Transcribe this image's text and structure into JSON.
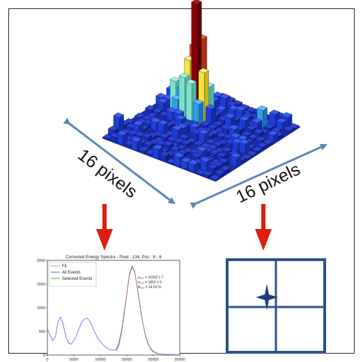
{
  "labels": {
    "left_dimension": "16 pixels",
    "right_dimension": "16 pixels"
  },
  "colors": {
    "frame": "#222222",
    "dimension_arrow": "#5b86b8",
    "down_arrow": "#dd1d10",
    "grid_box": "#2b4f8c",
    "sparkle": "#1d3f7a"
  },
  "histogram": {
    "peak_bars": "3D bar histogram with a tall red/orange/yellow peak near the centre of a blue pixel grid"
  },
  "chart_data": {
    "type": "line",
    "title": "Corrected Energy Spectra - Pixel : 134, Pos : 8 - 6",
    "xlabel": "",
    "ylabel": "",
    "xlim": [
      0,
      25000
    ],
    "ylim": [
      0,
      2000
    ],
    "x_ticks": [
      "0",
      "5000",
      "10000",
      "15000",
      "20000",
      "25000"
    ],
    "y_ticks": [
      "0",
      "500",
      "1000",
      "1500",
      "2000"
    ],
    "legend_position": "top-left",
    "legend": [
      "Fit",
      "All Events",
      "Selected Events"
    ],
    "annotations": [
      "μ₁₆₀ = 16332 ± 7",
      "σ₁₆₀ = 1052 ± 5",
      "R₁₆₀ = 14.59 %"
    ],
    "series": [
      {
        "name": "All Events",
        "color": "#5a5aff",
        "x": [
          0,
          500,
          1000,
          1500,
          2000,
          2500,
          3000,
          3500,
          4000,
          4500,
          5000,
          5500,
          6000,
          6500,
          7000,
          7500,
          8000,
          8500,
          9000,
          9500,
          10000,
          10500,
          11000,
          11500,
          12000,
          12500,
          13000,
          13500,
          14000,
          14500,
          15000,
          15500,
          16000,
          16500,
          17000,
          17500,
          18000,
          18500,
          19000,
          19500,
          20000,
          20500,
          21000,
          21500,
          22000,
          23000,
          24000,
          25000
        ],
        "y": [
          560,
          430,
          300,
          380,
          700,
          800,
          640,
          380,
          250,
          230,
          300,
          420,
          560,
          700,
          760,
          780,
          720,
          600,
          470,
          360,
          280,
          220,
          170,
          130,
          110,
          100,
          130,
          260,
          520,
          900,
          1300,
          1720,
          1880,
          1760,
          1420,
          1050,
          700,
          430,
          250,
          140,
          80,
          50,
          30,
          20,
          15,
          10,
          8,
          5
        ]
      },
      {
        "name": "Selected Events",
        "color": "#49b049",
        "x": [
          13000,
          13500,
          14000,
          14500,
          15000,
          15500,
          16000,
          16500,
          17000,
          17500,
          18000,
          18500,
          19000,
          19500,
          20000,
          20500,
          21000
        ],
        "y": [
          80,
          200,
          470,
          860,
          1270,
          1690,
          1860,
          1740,
          1400,
          1030,
          690,
          420,
          240,
          130,
          70,
          40,
          20
        ]
      },
      {
        "name": "Fit",
        "color": "#e35b5b",
        "x": [
          13000,
          13500,
          14000,
          14500,
          15000,
          15500,
          16000,
          16500,
          17000,
          17500,
          18000,
          18500,
          19000,
          19500,
          20000
        ],
        "y": [
          90,
          220,
          480,
          860,
          1280,
          1680,
          1870,
          1750,
          1400,
          1020,
          690,
          410,
          230,
          120,
          60
        ]
      }
    ]
  }
}
